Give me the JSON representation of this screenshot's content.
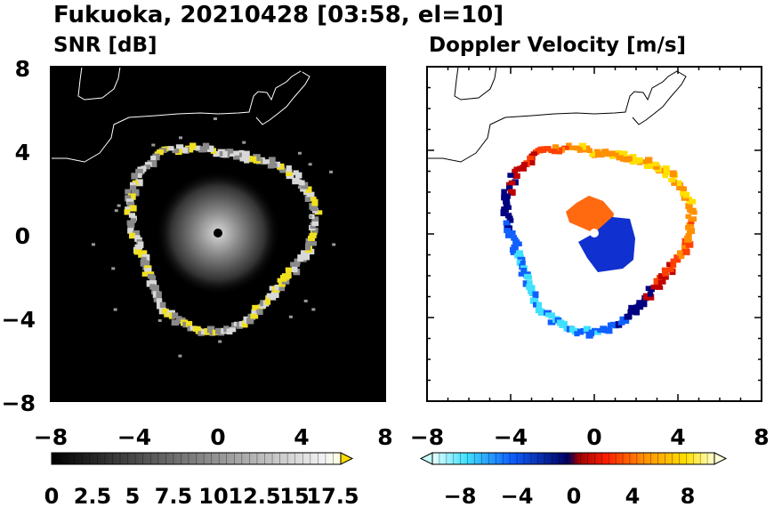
{
  "title": "Fukuoka, 20210428 [03:58, el=10]",
  "colors": {
    "background": "#ffffff",
    "snr_panel_bg": "#000000",
    "coast": "#000000"
  },
  "chart_data": [
    {
      "type": "heatmap",
      "title": "SNR [dB]",
      "xlim": [
        -8,
        8
      ],
      "ylim": [
        -8,
        8
      ],
      "x_ticks": [
        "−8",
        "−4",
        "0",
        "4",
        "8"
      ],
      "y_ticks": [
        "8",
        "4",
        "0",
        "−4",
        "−8"
      ],
      "grid": false,
      "colorbar": {
        "orientation": "horizontal",
        "range": [
          0,
          19
        ],
        "extend": "max",
        "ticks": [
          "0",
          "2.5",
          "5",
          "7.5",
          "10",
          "12.5",
          "15",
          "17.5"
        ],
        "colors": [
          "#000000",
          "#ffffff",
          "#ffff00"
        ]
      },
      "features": {
        "echo_ring_radius_approx": 4.5,
        "radar_center": [
          0,
          0
        ]
      }
    },
    {
      "type": "heatmap",
      "title": "Doppler Velocity [m/s]",
      "xlim": [
        -8,
        8
      ],
      "ylim": [
        -8,
        8
      ],
      "x_ticks": [
        "−8",
        "−4",
        "0",
        "4",
        "8"
      ],
      "y_ticks": [],
      "grid": false,
      "colorbar": {
        "orientation": "horizontal",
        "range": [
          -10,
          10
        ],
        "extend": "both",
        "ticks": [
          "−8",
          "−4",
          "0",
          "4",
          "8"
        ],
        "colors": [
          "#e0ffff",
          "#00c0ff",
          "#0000a0",
          "#c00000",
          "#ff8000",
          "#ffff80"
        ]
      },
      "features": {
        "echo_ring_radius_approx": 4.5,
        "radar_center": [
          0,
          0
        ]
      }
    }
  ]
}
